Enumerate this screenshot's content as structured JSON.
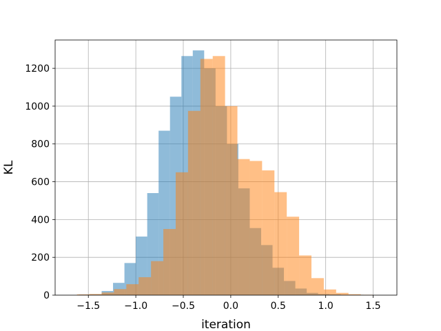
{
  "chart_data": {
    "type": "bar",
    "title": "",
    "xlabel": "iteration",
    "ylabel": "KL",
    "xlim": [
      -1.85,
      1.75
    ],
    "ylim": [
      0,
      1350
    ],
    "xticks": [
      -1.5,
      -1.0,
      -0.5,
      0.0,
      0.5,
      1.0,
      1.5
    ],
    "xtick_labels": [
      "−1.5",
      "−1.0",
      "−0.5",
      "0.0",
      "0.5",
      "1.0",
      "1.5"
    ],
    "yticks": [
      0,
      200,
      400,
      600,
      800,
      1000,
      1200
    ],
    "ytick_labels": [
      "0",
      "200",
      "400",
      "600",
      "800",
      "1000",
      "1200"
    ],
    "grid": true,
    "legend": "none",
    "series": [
      {
        "color": "#1f77b4",
        "alpha": 0.5,
        "bin_edges": [
          -1.6,
          -1.48,
          -1.36,
          -1.24,
          -1.12,
          -1.0,
          -0.88,
          -0.76,
          -0.64,
          -0.52,
          -0.4,
          -0.28,
          -0.16,
          -0.04,
          0.08,
          0.2,
          0.32,
          0.44,
          0.56,
          0.68,
          0.8,
          0.92,
          1.04,
          1.16,
          1.28,
          1.4,
          1.52
        ],
        "values": [
          3,
          4,
          22,
          65,
          170,
          310,
          540,
          870,
          1050,
          1265,
          1295,
          1200,
          1000,
          800,
          565,
          355,
          265,
          145,
          75,
          35,
          12,
          6,
          4,
          2,
          2,
          1
        ]
      },
      {
        "color": "#ff7f0e",
        "alpha": 0.5,
        "bin_edges": [
          -1.62,
          -1.49,
          -1.36,
          -1.23,
          -1.1,
          -0.97,
          -0.84,
          -0.71,
          -0.58,
          -0.45,
          -0.32,
          -0.19,
          -0.06,
          0.07,
          0.2,
          0.33,
          0.46,
          0.59,
          0.72,
          0.85,
          0.98,
          1.11,
          1.24,
          1.37,
          1.5
        ],
        "values": [
          4,
          6,
          14,
          32,
          58,
          95,
          180,
          350,
          650,
          975,
          1250,
          1265,
          1000,
          720,
          710,
          660,
          545,
          415,
          210,
          90,
          30,
          12,
          5,
          2
        ]
      }
    ]
  }
}
